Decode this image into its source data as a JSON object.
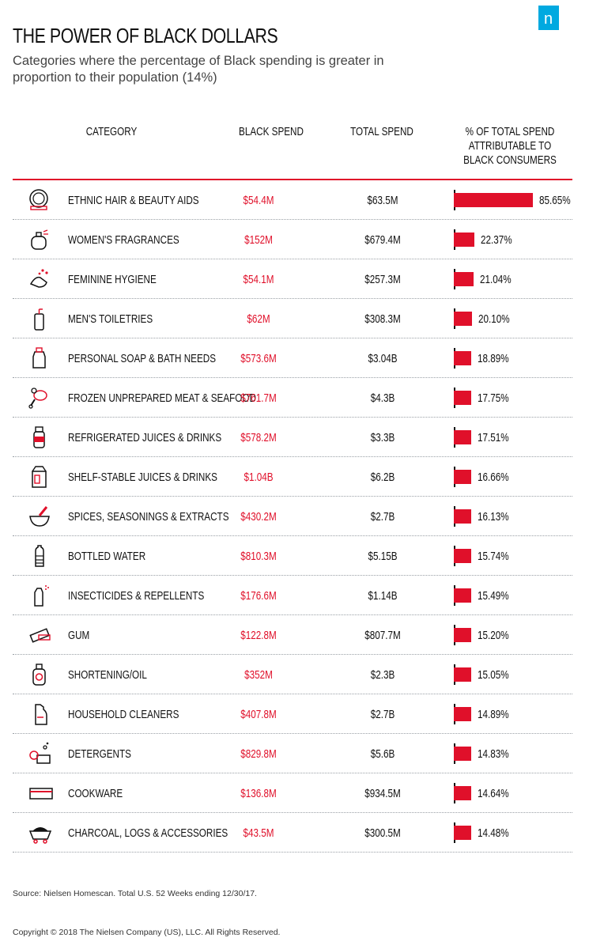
{
  "brand": {
    "logo_letter": "n",
    "logo_color": "#00a9e0"
  },
  "title": "THE POWER OF BLACK DOLLARS",
  "subtitle": "Categories where the percentage of Black spending is greater in proportion to their population (14%)",
  "headers": {
    "category": "CATEGORY",
    "black_spend": "BLACK SPEND",
    "total_spend": "TOTAL SPEND",
    "pct_line1": "% OF TOTAL SPEND",
    "pct_line2": "ATTRIBUTABLE TO",
    "pct_line3": "BLACK CONSUMERS"
  },
  "colors": {
    "accent": "#e0102a",
    "text": "#111111"
  },
  "chart_data": {
    "type": "table",
    "columns": [
      "CATEGORY",
      "BLACK SPEND",
      "TOTAL SPEND",
      "% OF TOTAL SPEND ATTRIBUTABLE TO BLACK CONSUMERS"
    ],
    "rows": [
      {
        "icon": "compact-mirror-icon",
        "category": "ETHNIC HAIR & BEAUTY AIDS",
        "black_spend": "$54.4M",
        "total_spend": "$63.5M",
        "pct": 85.65,
        "pct_label": "85.65%"
      },
      {
        "icon": "perfume-bottle-icon",
        "category": "WOMEN'S FRAGRANCES",
        "black_spend": "$152M",
        "total_spend": "$679.4M",
        "pct": 22.37,
        "pct_label": "22.37%"
      },
      {
        "icon": "hand-wash-icon",
        "category": "FEMININE HYGIENE",
        "black_spend": "$54.1M",
        "total_spend": "$257.3M",
        "pct": 21.04,
        "pct_label": "21.04%"
      },
      {
        "icon": "toiletry-bottle-icon",
        "category": "MEN'S TOILETRIES",
        "black_spend": "$62M",
        "total_spend": "$308.3M",
        "pct": 20.1,
        "pct_label": "20.10%"
      },
      {
        "icon": "soap-bottle-icon",
        "category": "PERSONAL SOAP & BATH NEEDS",
        "black_spend": "$573.6M",
        "total_spend": "$3.04B",
        "pct": 18.89,
        "pct_label": "18.89%"
      },
      {
        "icon": "meat-icon",
        "category": "FROZEN UNPREPARED MEAT & SEAFOOD",
        "black_spend": "$761.7M",
        "total_spend": "$4.3B",
        "pct": 17.75,
        "pct_label": "17.75%"
      },
      {
        "icon": "juice-bottle-icon",
        "category": "REFRIGERATED JUICES & DRINKS",
        "black_spend": "$578.2M",
        "total_spend": "$3.3B",
        "pct": 17.51,
        "pct_label": "17.51%"
      },
      {
        "icon": "juice-carton-icon",
        "category": "SHELF-STABLE JUICES & DRINKS",
        "black_spend": "$1.04B",
        "total_spend": "$6.2B",
        "pct": 16.66,
        "pct_label": "16.66%"
      },
      {
        "icon": "mortar-pestle-icon",
        "category": "SPICES, SEASONINGS & EXTRACTS",
        "black_spend": "$430.2M",
        "total_spend": "$2.7B",
        "pct": 16.13,
        "pct_label": "16.13%"
      },
      {
        "icon": "water-bottle-icon",
        "category": "BOTTLED WATER",
        "black_spend": "$810.3M",
        "total_spend": "$5.15B",
        "pct": 15.74,
        "pct_label": "15.74%"
      },
      {
        "icon": "spray-bottle-icon",
        "category": "INSECTICIDES & REPELLENTS",
        "black_spend": "$176.6M",
        "total_spend": "$1.14B",
        "pct": 15.49,
        "pct_label": "15.49%"
      },
      {
        "icon": "gum-icon",
        "category": "GUM",
        "black_spend": "$122.8M",
        "total_spend": "$807.7M",
        "pct": 15.2,
        "pct_label": "15.20%"
      },
      {
        "icon": "oil-bottle-icon",
        "category": "SHORTENING/OIL",
        "black_spend": "$352M",
        "total_spend": "$2.3B",
        "pct": 15.05,
        "pct_label": "15.05%"
      },
      {
        "icon": "cleaner-bottle-icon",
        "category": "HOUSEHOLD CLEANERS",
        "black_spend": "$407.8M",
        "total_spend": "$2.7B",
        "pct": 14.89,
        "pct_label": "14.89%"
      },
      {
        "icon": "detergent-icon",
        "category": "DETERGENTS",
        "black_spend": "$829.8M",
        "total_spend": "$5.6B",
        "pct": 14.83,
        "pct_label": "14.83%"
      },
      {
        "icon": "baking-pan-icon",
        "category": "COOKWARE",
        "black_spend": "$136.8M",
        "total_spend": "$934.5M",
        "pct": 14.64,
        "pct_label": "14.64%"
      },
      {
        "icon": "charcoal-cart-icon",
        "category": "CHARCOAL, LOGS & ACCESSORIES",
        "black_spend": "$43.5M",
        "total_spend": "$300.5M",
        "pct": 14.48,
        "pct_label": "14.48%"
      }
    ]
  },
  "source": "Source: Nielsen Homescan. Total U.S. 52 Weeks ending 12/30/17.",
  "copyright": "Copyright © 2018 The Nielsen Company (US), LLC. All Rights Reserved."
}
